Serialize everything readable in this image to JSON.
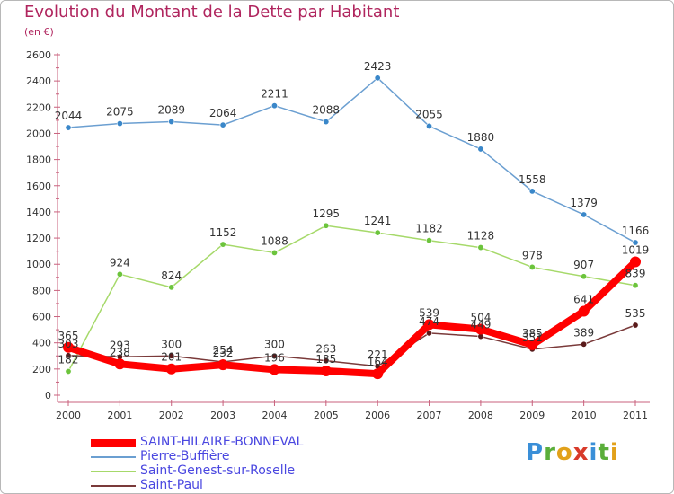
{
  "title": "Evolution du Montant de la Dette par Habitant",
  "subtitle": "(en €)",
  "logo": {
    "letters": [
      {
        "ch": "P",
        "color": "#3a8fd8"
      },
      {
        "ch": "r",
        "color": "#5aae3a"
      },
      {
        "ch": "o",
        "color": "#e2a11a"
      },
      {
        "ch": "x",
        "color": "#d83a2a"
      },
      {
        "ch": "i",
        "color": "#3a8fd8"
      },
      {
        "ch": "t",
        "color": "#5aae3a"
      },
      {
        "ch": "i",
        "color": "#e2a11a"
      }
    ]
  },
  "chart_data": {
    "type": "line",
    "x": [
      "2000",
      "2001",
      "2002",
      "2003",
      "2004",
      "2005",
      "2006",
      "2007",
      "2008",
      "2009",
      "2010",
      "2011"
    ],
    "ylim": [
      0,
      2600
    ],
    "yticks": [
      0,
      200,
      400,
      600,
      800,
      1000,
      1200,
      1400,
      1600,
      1800,
      2000,
      2200,
      2400,
      2600
    ],
    "grid": false,
    "legend_position": "bottom-left",
    "series": [
      {
        "name": "SAINT-HILAIRE-BONNEVAL",
        "color": "#ff0000",
        "point_color": "#ff0000",
        "emphasis": true,
        "values": [
          365,
          238,
          201,
          232,
          196,
          185,
          164,
          539,
          504,
          385,
          641,
          1019
        ],
        "labels": [
          "365",
          "238",
          "201",
          "232",
          "196",
          "185",
          "164",
          "539",
          "504",
          "385",
          "641",
          "1019"
        ]
      },
      {
        "name": "Pierre-Buffière",
        "color": "#6b9fd1",
        "point_color": "#3a87c9",
        "values": [
          2044,
          2075,
          2089,
          2064,
          2211,
          2088,
          2423,
          2055,
          1880,
          1558,
          1379,
          1166
        ],
        "labels": [
          "2044",
          "2075",
          "2089",
          "2064",
          "2211",
          "2088",
          "2423",
          "2055",
          "1880",
          "1558",
          "1379",
          "1166"
        ]
      },
      {
        "name": "Saint-Genest-sur-Roselle",
        "color": "#a6d96a",
        "point_color": "#6cc43c",
        "values": [
          182,
          924,
          824,
          1152,
          1088,
          1295,
          1241,
          1182,
          1128,
          978,
          907,
          839
        ],
        "labels": [
          "182",
          "924",
          "824",
          "1152",
          "1088",
          "1295",
          "1241",
          "1182",
          "1128",
          "978",
          "907",
          "839"
        ]
      },
      {
        "name": "Saint-Paul",
        "color": "#7a3a3a",
        "point_color": "#5a1a1a",
        "values": [
          303,
          293,
          300,
          254,
          300,
          263,
          221,
          474,
          449,
          351,
          389,
          535
        ],
        "labels": [
          "303",
          "293",
          "300",
          "254",
          "300",
          "263",
          "221",
          "474",
          "449",
          "351",
          "389",
          "535"
        ]
      }
    ]
  }
}
